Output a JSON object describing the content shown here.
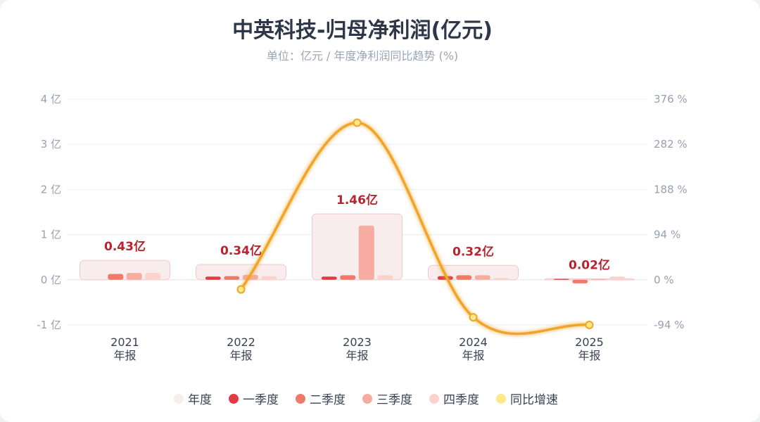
{
  "header": {
    "title": "中英科技-归母净利润(亿元)",
    "subtitle": "单位：亿元 / 年度净利润同比趋势 (%)"
  },
  "colors": {
    "annual": "#f8eced",
    "annual_stroke": "#f0c8cb",
    "q1": "#e63946",
    "q2": "#f07a6a",
    "q3": "#f6aca0",
    "q4": "#fbd3cc",
    "yoy_line": "#f0a52a",
    "yoy_marker": "#fde98a"
  },
  "legend": [
    {
      "label": "年度",
      "color": "#f8eced"
    },
    {
      "label": "一季度",
      "color": "#e63946"
    },
    {
      "label": "二季度",
      "color": "#f07a6a"
    },
    {
      "label": "三季度",
      "color": "#f6aca0"
    },
    {
      "label": "四季度",
      "color": "#fbd3cc"
    },
    {
      "label": "同比增速",
      "color": "#fde98a"
    }
  ],
  "chart_data": {
    "type": "bar",
    "title": "中英科技-归母净利润(亿元)",
    "subtitle": "单位：亿元 / 年度净利润同比趋势 (%)",
    "categories": [
      "2021\n年报",
      "2022\n年报",
      "2023\n年报",
      "2024\n年报",
      "2025\n年报"
    ],
    "y_left": {
      "ticks": [
        -1,
        0,
        1,
        2,
        3,
        4
      ],
      "tick_labels": [
        "-1 亿",
        "0 亿",
        "1 亿",
        "2 亿",
        "3 亿",
        "4 亿"
      ],
      "range": [
        -1,
        4
      ]
    },
    "y_right": {
      "ticks": [
        -94,
        0,
        94,
        188,
        282,
        376
      ],
      "tick_labels": [
        "-94 %",
        "0 %",
        "94 %",
        "188 %",
        "282 %",
        "376 %"
      ],
      "range": [
        -94,
        376
      ]
    },
    "annual": {
      "name": "年度",
      "values": [
        0.43,
        0.34,
        1.46,
        0.32,
        0.02
      ],
      "labels": [
        "0.43亿",
        "0.34亿",
        "1.46亿",
        "0.32亿",
        "0.02亿"
      ]
    },
    "series": [
      {
        "name": "一季度",
        "values": [
          0.0,
          0.07,
          0.07,
          0.08,
          0.02
        ]
      },
      {
        "name": "二季度",
        "values": [
          0.13,
          0.08,
          0.1,
          0.1,
          -0.08
        ]
      },
      {
        "name": "三季度",
        "values": [
          0.15,
          0.11,
          1.2,
          0.1,
          0.01
        ]
      },
      {
        "name": "四季度",
        "values": [
          0.15,
          0.08,
          0.1,
          0.04,
          0.07
        ]
      }
    ],
    "yoy": {
      "name": "同比增速",
      "values": [
        null,
        -20,
        327,
        -78,
        -94
      ]
    },
    "grid": true,
    "legend_position": "bottom"
  }
}
